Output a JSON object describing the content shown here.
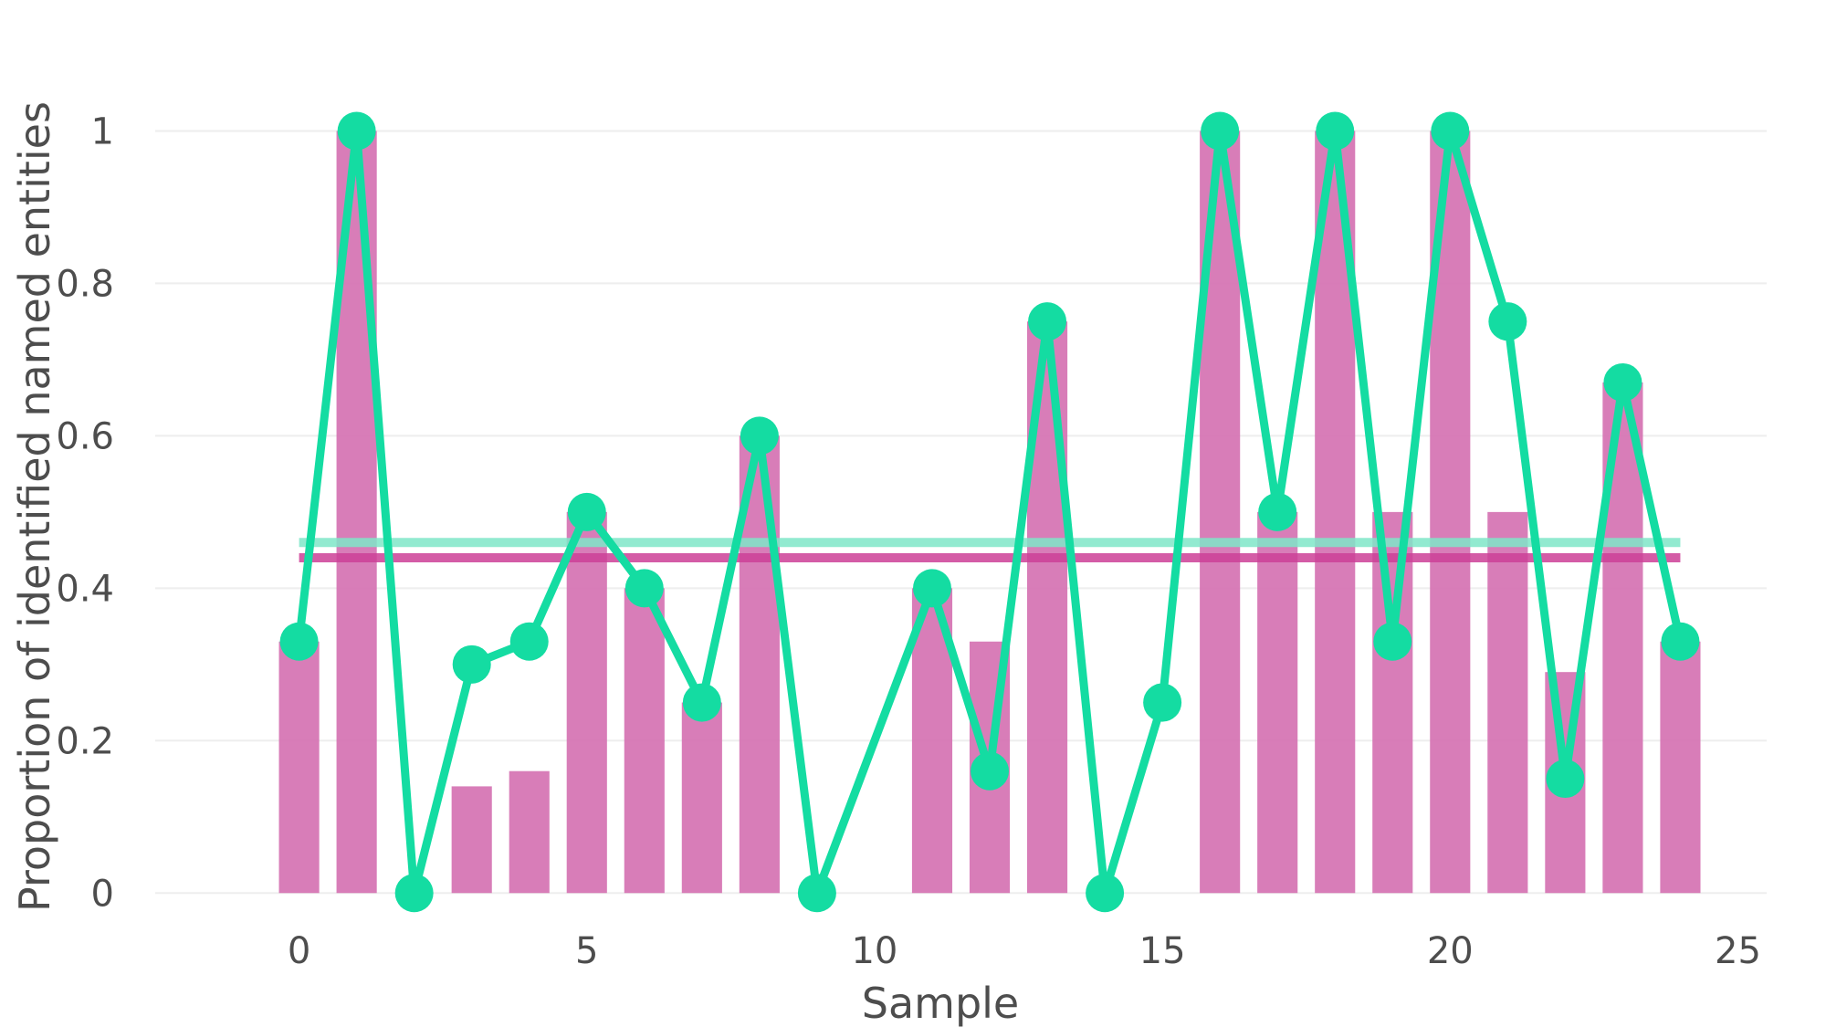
{
  "chart_data": {
    "type": "bar",
    "xlabel": "Sample",
    "ylabel": "Proportion of identified named entities",
    "xlim": [
      -2.5,
      25.5
    ],
    "ylim": [
      -0.05,
      1.1
    ],
    "x_ticks": [
      0,
      5,
      10,
      15,
      20,
      25
    ],
    "y_ticks": [
      0,
      0.2,
      0.4,
      0.6,
      0.8,
      1
    ],
    "y_tick_labels": [
      "0",
      "0.2",
      "0.4",
      "0.6",
      "0.8",
      "1"
    ],
    "grid": true,
    "colors": {
      "bars": "#d46fb0",
      "line": "#14dca2",
      "mean_bars": "#cc3f97",
      "mean_line": "#7fe6c8"
    },
    "bars": {
      "x": [
        0,
        1,
        2,
        3,
        4,
        5,
        6,
        7,
        8,
        9,
        10,
        11,
        12,
        13,
        14,
        15,
        16,
        17,
        18,
        19,
        20,
        21,
        22,
        23,
        24
      ],
      "values": [
        0.33,
        1.0,
        0,
        0.14,
        0.16,
        0.5,
        0.4,
        0.25,
        0.6,
        0,
        0,
        0.4,
        0.33,
        0.75,
        0,
        0,
        1.0,
        0.5,
        1.0,
        0.5,
        1.0,
        0.5,
        0.29,
        0.67,
        0.33
      ]
    },
    "line": {
      "x": [
        0,
        1,
        2,
        3,
        4,
        5,
        6,
        7,
        8,
        9,
        11,
        12,
        13,
        14,
        15,
        16,
        17,
        18,
        19,
        20,
        21,
        22,
        23,
        24
      ],
      "values": [
        0.33,
        1.0,
        0,
        0.3,
        0.33,
        0.5,
        0.4,
        0.25,
        0.6,
        0,
        0.4,
        0.16,
        0.75,
        0,
        0.25,
        1.0,
        0.5,
        1.0,
        0.33,
        1.0,
        0.75,
        0.15,
        0.67,
        0.33
      ]
    },
    "mean_lines": [
      {
        "x": [
          0,
          24
        ],
        "value": 0.46,
        "color_key": "mean_line"
      },
      {
        "x": [
          0,
          24
        ],
        "value": 0.44,
        "color_key": "mean_bars"
      }
    ]
  }
}
